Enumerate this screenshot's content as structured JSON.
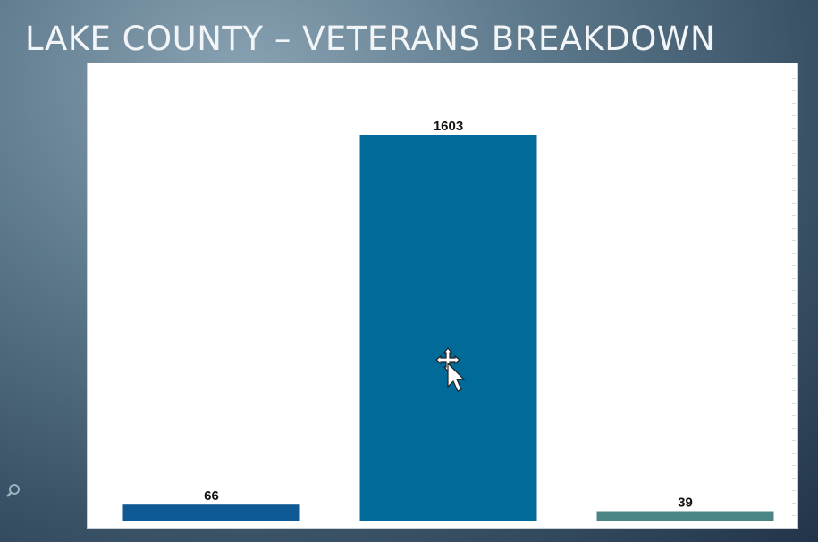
{
  "slide": {
    "title": "LAKE COUNTY – VETERANS BREAKDOWN"
  },
  "colors": {
    "bar_1": "#0f5a94",
    "bar_2": "#006a99",
    "bar_3": "#4a8585",
    "label": "#111111"
  },
  "icons": {
    "cursor": "move-cursor-icon",
    "zoom": "magnifier-icon"
  },
  "chart_data": {
    "type": "bar",
    "title": "",
    "xlabel": "",
    "ylabel": "",
    "categories": [
      "",
      "",
      ""
    ],
    "values": [
      66,
      1603,
      39
    ],
    "data_labels": [
      "66",
      "1603",
      "39"
    ],
    "ylim": [
      0,
      1603
    ],
    "grid": false,
    "legend": "none"
  }
}
